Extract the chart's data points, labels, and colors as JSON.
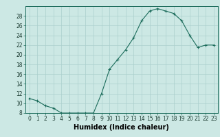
{
  "x": [
    0,
    1,
    2,
    3,
    4,
    5,
    6,
    7,
    8,
    9,
    10,
    11,
    12,
    13,
    14,
    15,
    16,
    17,
    18,
    19,
    20,
    21,
    22,
    23
  ],
  "y": [
    11.0,
    10.5,
    9.5,
    9.0,
    8.0,
    8.0,
    8.0,
    8.0,
    8.0,
    12.0,
    17.0,
    19.0,
    21.0,
    23.5,
    27.0,
    29.0,
    29.5,
    29.0,
    28.5,
    27.0,
    24.0,
    21.5,
    22.0,
    22.0
  ],
  "line_color": "#1a6b5a",
  "marker": "+",
  "marker_size": 3,
  "background_color": "#cce8e4",
  "grid_color": "#aacfcc",
  "xlabel": "Humidex (Indice chaleur)",
  "ylim": [
    8,
    30
  ],
  "yticks": [
    8,
    10,
    12,
    14,
    16,
    18,
    20,
    22,
    24,
    26,
    28
  ],
  "xlim": [
    -0.5,
    23.5
  ],
  "xticks": [
    0,
    1,
    2,
    3,
    4,
    5,
    6,
    7,
    8,
    9,
    10,
    11,
    12,
    13,
    14,
    15,
    16,
    17,
    18,
    19,
    20,
    21,
    22,
    23
  ],
  "tick_label_fontsize": 5.5,
  "xlabel_fontsize": 7.0
}
